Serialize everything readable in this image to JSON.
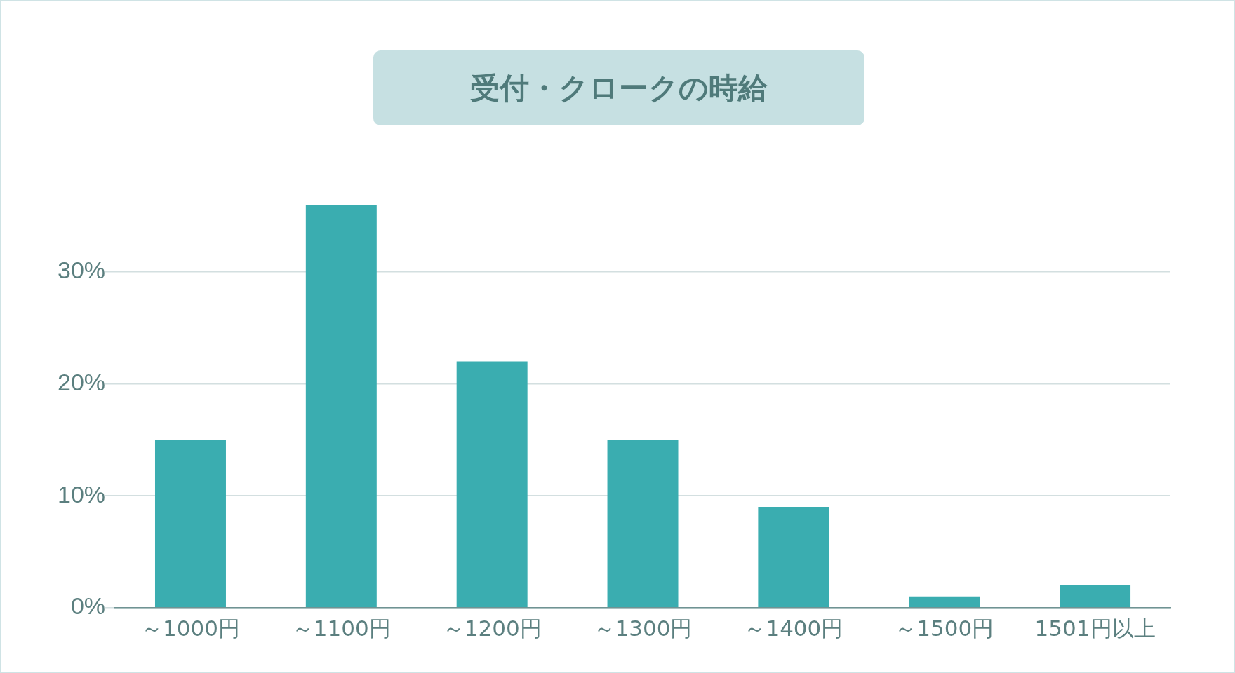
{
  "chart_data": {
    "type": "bar",
    "title": "受付・クロークの時給",
    "categories": [
      "～1000円",
      "～1100円",
      "～1200円",
      "～1300円",
      "～1400円",
      "～1500円",
      "1501円以上"
    ],
    "values": [
      15,
      36,
      22,
      15,
      9,
      1,
      2
    ],
    "color": "#3aadb0",
    "ylim": [
      0,
      36
    ],
    "yticks": [
      {
        "value": 0,
        "label": "0%"
      },
      {
        "value": 10,
        "label": "10%"
      },
      {
        "value": 20,
        "label": "20%"
      },
      {
        "value": 30,
        "label": "30%"
      }
    ],
    "grid": "y",
    "legend": false
  }
}
